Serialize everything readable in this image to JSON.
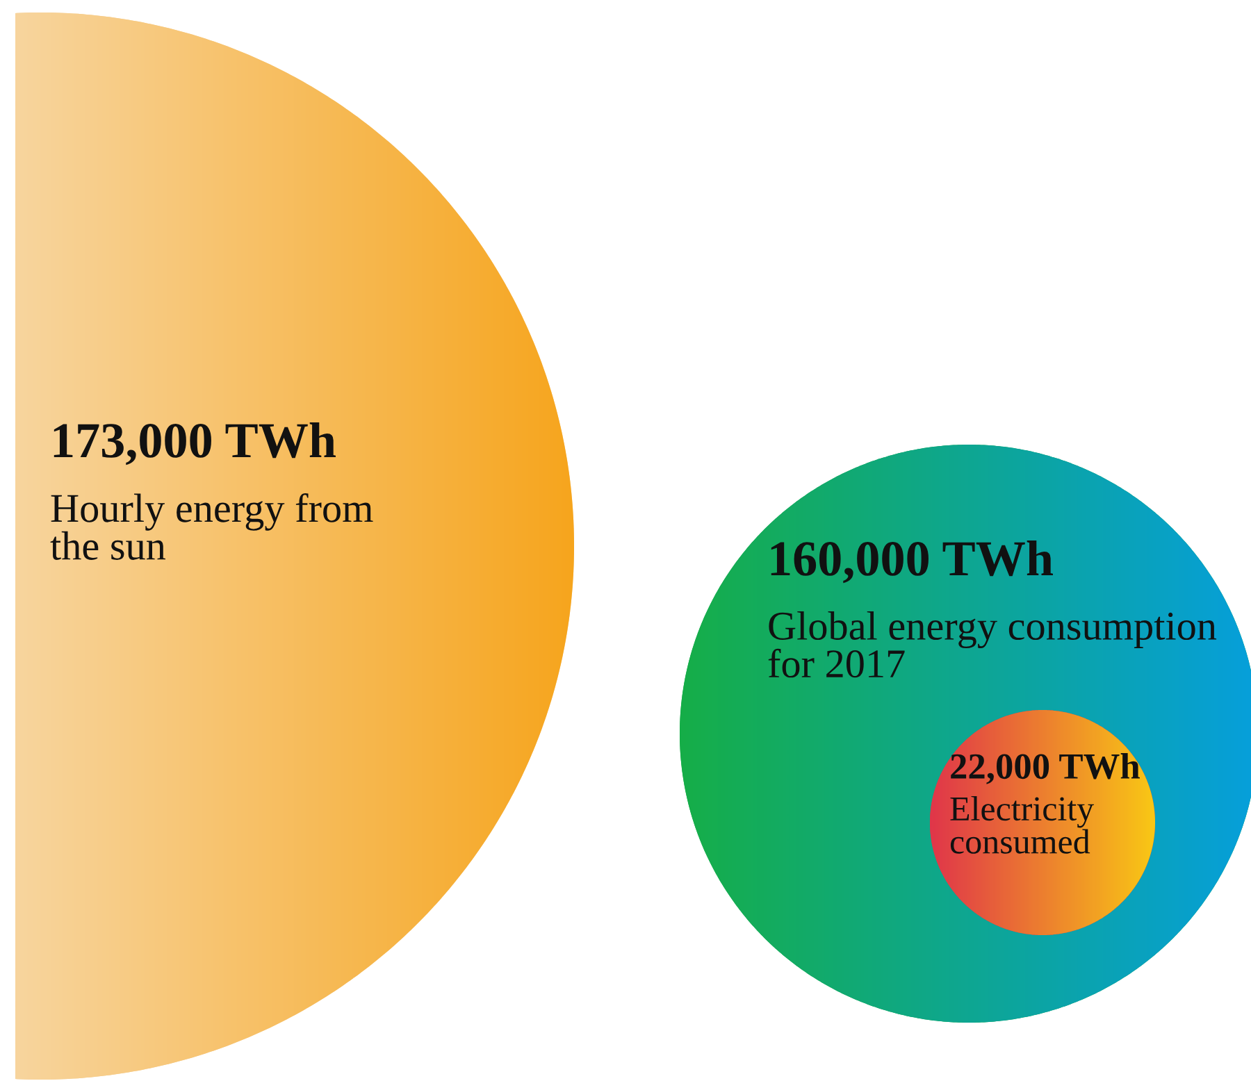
{
  "chart_data": {
    "type": "other",
    "categories": [
      "Hourly energy from\nthe sun",
      "Global energy consumption\nfor 2017",
      "Electricity\nconsumed"
    ],
    "values": [
      173000,
      160000,
      22000
    ],
    "value_labels": [
      "173,000 TWh",
      "160,000 TWh",
      "22,000 TWh"
    ],
    "colors": [
      [
        "#f8d59e",
        "#f6a51d"
      ],
      [
        "#16ae48",
        "#069fdc"
      ],
      [
        "#e0364a",
        "#f9c815"
      ]
    ]
  }
}
